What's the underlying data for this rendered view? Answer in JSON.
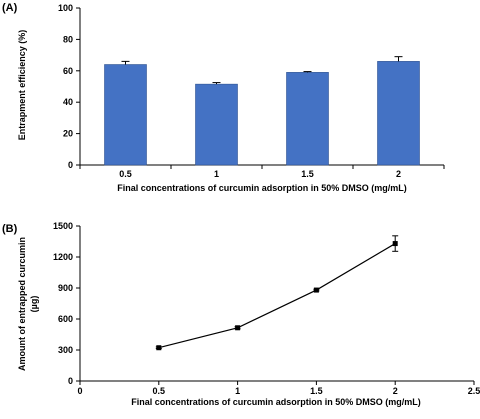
{
  "chart_data": [
    {
      "panel": "(A)",
      "type": "bar",
      "categories": [
        "0.5",
        "1",
        "1.5",
        "2"
      ],
      "values": [
        64,
        51.5,
        59,
        66
      ],
      "errors": [
        2,
        1,
        0.5,
        3
      ],
      "bar_color": "#4472c4",
      "xlabel": "Final concentrations of curcumin adsorption in 50% DMSO (mg/mL)",
      "ylabel": "Entrapment efficiency (%)",
      "ylim": [
        0,
        100
      ],
      "yticks": [
        0,
        20,
        40,
        60,
        80,
        100
      ],
      "grid": false
    },
    {
      "panel": "(B)",
      "type": "line",
      "x": [
        0.5,
        1,
        1.5,
        2
      ],
      "y": [
        322,
        515,
        880,
        1330
      ],
      "errors": [
        8,
        10,
        8,
        75
      ],
      "line_color": "#000000",
      "xlabel": "Final concentrations of curcumin adsorption in 50% DMSO (mg/mL)",
      "ylabel_lines": [
        "Amount of entrapped curcumin",
        "(µg)"
      ],
      "xlim": [
        0,
        2.5
      ],
      "ylim": [
        0,
        1500
      ],
      "xticks": [
        0,
        0.5,
        1,
        1.5,
        2,
        2.5
      ],
      "yticks": [
        0,
        300,
        600,
        900,
        1200,
        1500
      ],
      "grid": false
    }
  ]
}
